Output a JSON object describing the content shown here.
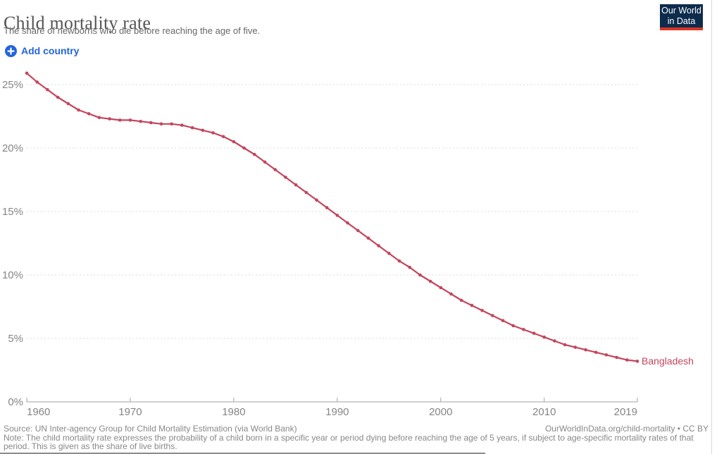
{
  "header": {
    "title": "Child mortality rate",
    "subtitle": "The share of newborns who die before reaching the age of five.",
    "logo": {
      "line1": "Our World",
      "line2": "in Data"
    }
  },
  "controls": {
    "add_country_label": "Add country"
  },
  "colors": {
    "series": "#c4455c",
    "accent_blue": "#2264dd",
    "gridline": "#dcdcdc",
    "axis": "#a3a3a3",
    "tick_text": "#858585",
    "logo_navy": "#0d2b4d",
    "logo_red": "#dc3524"
  },
  "chart_data": {
    "type": "line",
    "title": "Child mortality rate",
    "xlabel": "",
    "ylabel": "",
    "xlim": [
      1960,
      2019
    ],
    "ylim": [
      0,
      26.5
    ],
    "grid": true,
    "legend_position": "end-of-line",
    "xtick_values": [
      1960,
      1970,
      1980,
      1990,
      2000,
      2010,
      2019
    ],
    "xtick_labels": [
      "1960",
      "1970",
      "1980",
      "1990",
      "2000",
      "2010",
      "2019"
    ],
    "ytick_values": [
      0,
      5,
      10,
      15,
      20,
      25
    ],
    "ytick_labels": [
      "0%",
      "5%",
      "10%",
      "15%",
      "20%",
      "25%"
    ],
    "x": [
      1960,
      1961,
      1962,
      1963,
      1964,
      1965,
      1966,
      1967,
      1968,
      1969,
      1970,
      1971,
      1972,
      1973,
      1974,
      1975,
      1976,
      1977,
      1978,
      1979,
      1980,
      1981,
      1982,
      1983,
      1984,
      1985,
      1986,
      1987,
      1988,
      1989,
      1990,
      1991,
      1992,
      1993,
      1994,
      1995,
      1996,
      1997,
      1998,
      1999,
      2000,
      2001,
      2002,
      2003,
      2004,
      2005,
      2006,
      2007,
      2008,
      2009,
      2010,
      2011,
      2012,
      2013,
      2014,
      2015,
      2016,
      2017,
      2018,
      2019
    ],
    "series": [
      {
        "name": "Bangladesh",
        "unit": "%",
        "values": [
          25.9,
          25.2,
          24.6,
          24.0,
          23.5,
          23.0,
          22.7,
          22.4,
          22.3,
          22.2,
          22.2,
          22.1,
          22.0,
          21.9,
          21.9,
          21.8,
          21.6,
          21.4,
          21.2,
          20.9,
          20.5,
          20.0,
          19.5,
          18.9,
          18.3,
          17.7,
          17.1,
          16.5,
          15.9,
          15.3,
          14.7,
          14.1,
          13.5,
          12.9,
          12.3,
          11.7,
          11.1,
          10.6,
          10.0,
          9.5,
          9.0,
          8.5,
          8.0,
          7.6,
          7.2,
          6.8,
          6.4,
          6.0,
          5.7,
          5.4,
          5.1,
          4.8,
          4.5,
          4.3,
          4.1,
          3.9,
          3.7,
          3.5,
          3.3,
          3.2
        ]
      }
    ]
  },
  "footer": {
    "source": "Source: UN Inter-agency Group for Child Mortality Estimation (via World Bank)",
    "note": "Note: The child mortality rate expresses the probability of a child born in a specific year or period dying before reaching the age of 5 years, if subject to age-specific mortality rates of that period. This is given as the share of live births.",
    "license": "OurWorldInData.org/child-mortality • CC BY"
  }
}
